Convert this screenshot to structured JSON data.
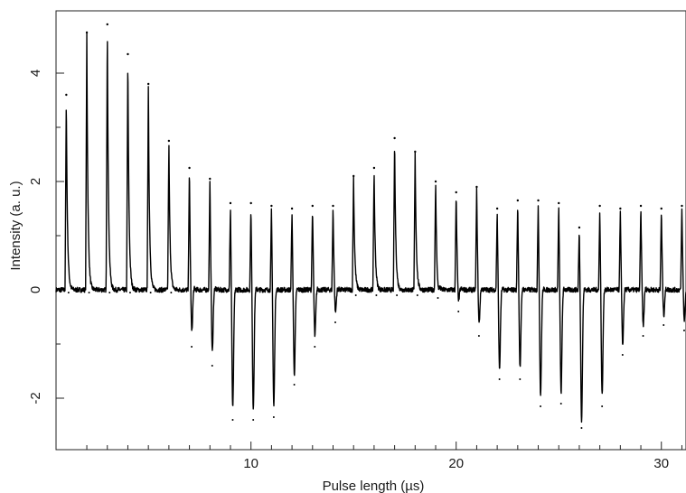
{
  "chart_data": {
    "type": "line",
    "title": "",
    "xlabel": "Pulse length (µs)",
    "ylabel": "Intensity (a. u.)",
    "xlim": [
      0.5,
      31.2
    ],
    "ylim": [
      -2.95,
      5.15
    ],
    "x_ticks_major": [
      10,
      20,
      30
    ],
    "x_ticks_minor": [
      2,
      3,
      4,
      5,
      6,
      7,
      8,
      9,
      11,
      12,
      13,
      14,
      15,
      16,
      17,
      18,
      19,
      21,
      22,
      23,
      24,
      25,
      26,
      27,
      28,
      29,
      31
    ],
    "y_ticks_major": [
      -2,
      0,
      2,
      4
    ],
    "y_ticks_minor": [
      -1,
      1,
      3
    ],
    "grid": false,
    "legend": "none",
    "series": [
      {
        "pulse_x": [
          1,
          2,
          3,
          4,
          5,
          6,
          7,
          8,
          9,
          10,
          11,
          12,
          13,
          14,
          15,
          16,
          17,
          18,
          19,
          20,
          21,
          22,
          23,
          24,
          25,
          26,
          27,
          28,
          29,
          30,
          31
        ],
        "peak_max": [
          3.6,
          4.75,
          4.9,
          4.35,
          3.8,
          2.75,
          2.25,
          2.05,
          1.6,
          1.6,
          1.55,
          1.5,
          1.55,
          1.55,
          2.1,
          2.25,
          2.8,
          2.55,
          2.0,
          1.8,
          1.9,
          1.5,
          1.65,
          1.65,
          1.6,
          1.15,
          1.55,
          1.5,
          1.55,
          1.5,
          1.55
        ],
        "peak_min": [
          -0.05,
          -0.05,
          -0.05,
          -0.05,
          -0.05,
          -0.05,
          -1.05,
          -1.4,
          -2.4,
          -2.4,
          -2.35,
          -1.75,
          -1.05,
          -0.6,
          -0.1,
          -0.1,
          -0.1,
          -0.1,
          -0.15,
          -0.4,
          -0.85,
          -1.65,
          -1.65,
          -2.15,
          -2.1,
          -2.55,
          -2.15,
          -1.2,
          -0.85,
          -0.65,
          -0.75
        ]
      }
    ],
    "line_color": "#000000"
  }
}
